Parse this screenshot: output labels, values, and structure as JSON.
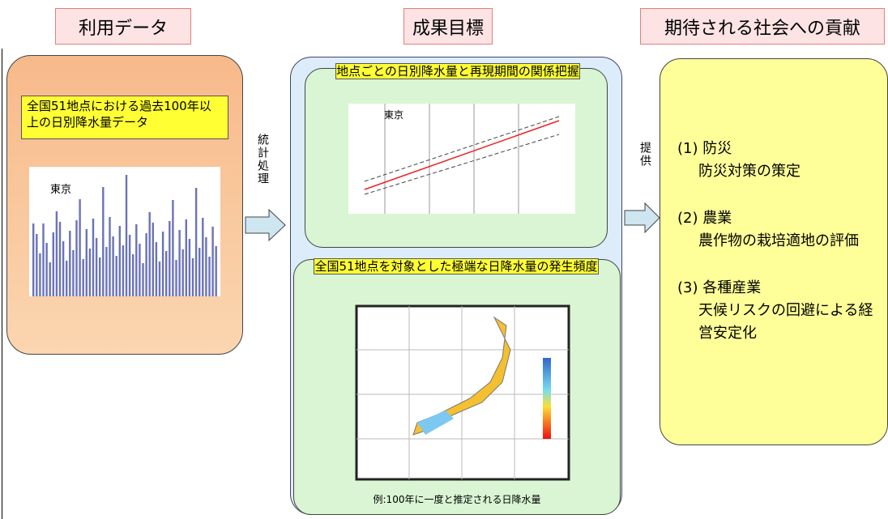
{
  "columns": {
    "left": "利用データ",
    "middle": "成果目標",
    "right": "期待される社会への貢献"
  },
  "left_box": {
    "label": "全国51地点における過去100年以上の日別降水量データ",
    "chart_station": "東京"
  },
  "arrow_left": "統計処理",
  "middle_top": {
    "label": "地点ごとの日別降水量と再現期間の関係把握",
    "chart_station": "東京"
  },
  "middle_bottom": {
    "label": "全国51地点を対象とした極端な日降水量の発生頻度",
    "caption": "例:100年に一度と推定される日降水量"
  },
  "arrow_right": "提供",
  "contributions": [
    {
      "heading": "(1) 防災",
      "text": "防災対策の策定"
    },
    {
      "heading": "(2) 農業",
      "text": "農作物の栽培適地の評価"
    },
    {
      "heading": "(3) 各種産業",
      "text": "天候リスクの回避による経営安定化"
    }
  ]
}
